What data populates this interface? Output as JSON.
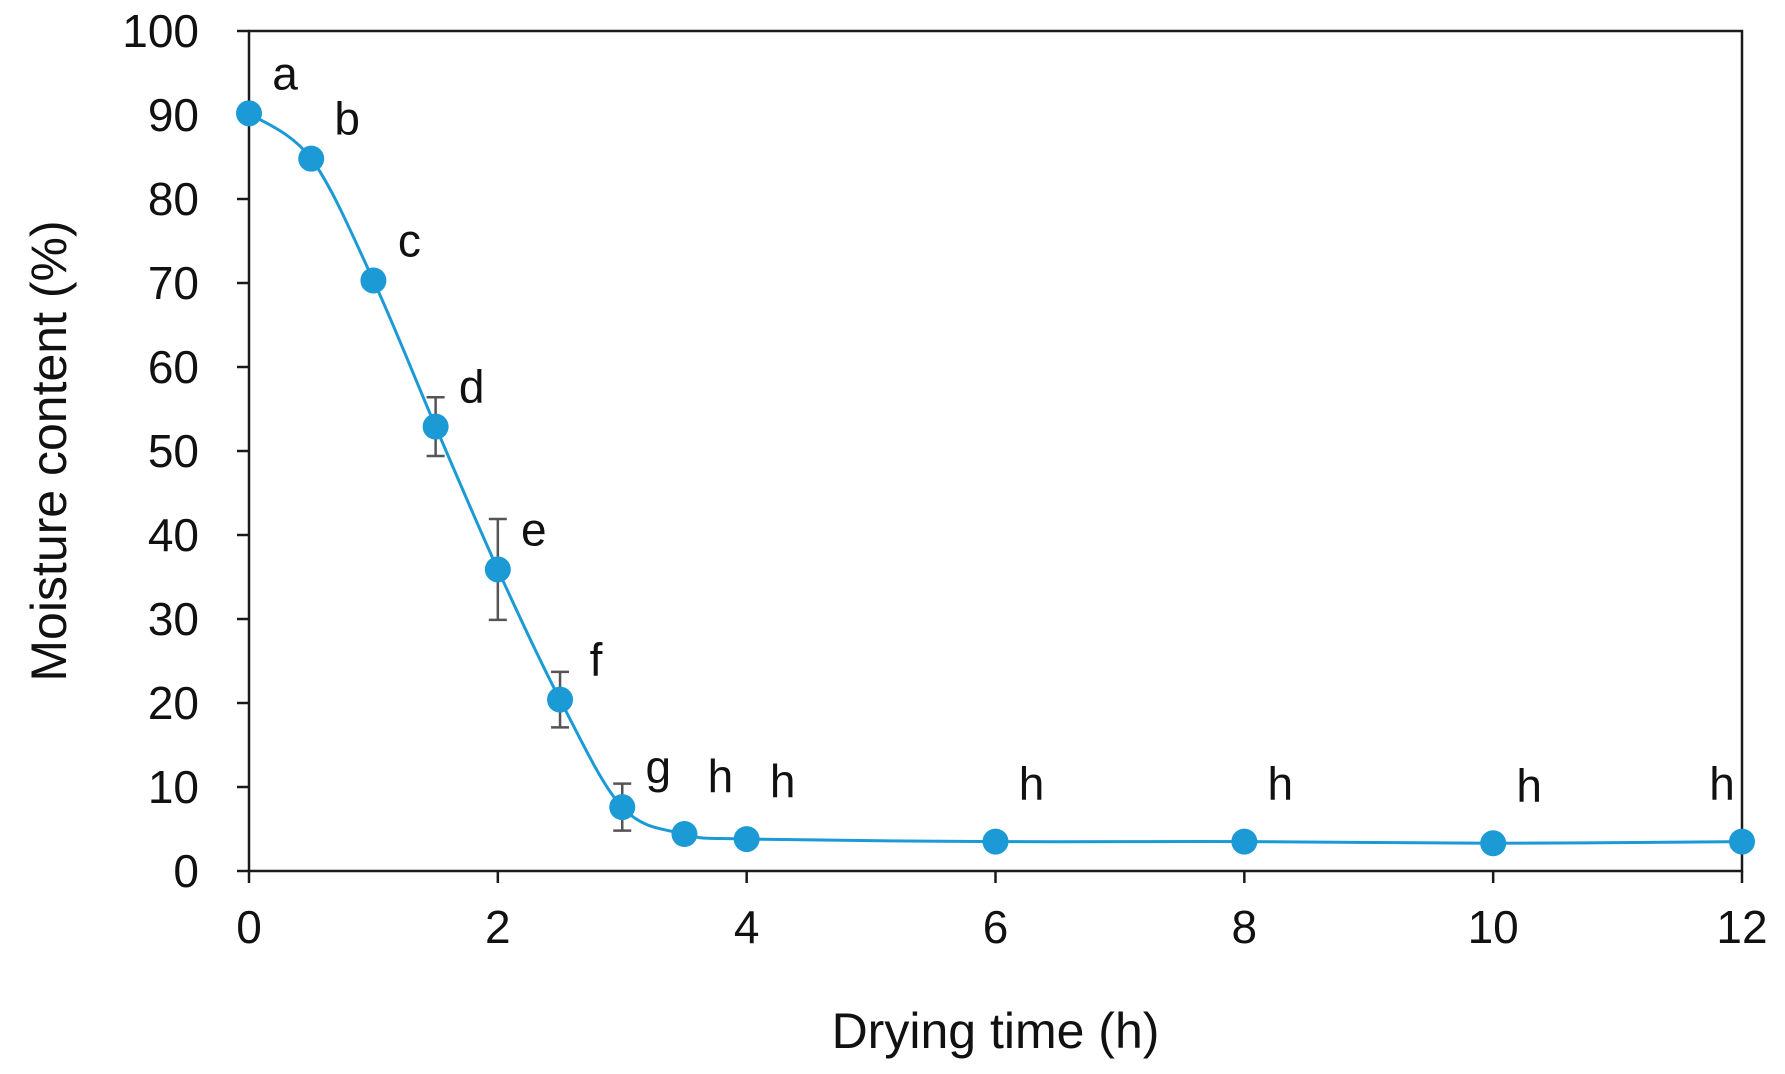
{
  "chart_data": {
    "type": "line",
    "title": "",
    "xlabel": "Drying time (h)",
    "ylabel": "Moisture content (%)",
    "xlim": [
      0,
      12
    ],
    "ylim": [
      0,
      100
    ],
    "xticks": [
      0,
      2,
      4,
      6,
      8,
      10,
      12
    ],
    "yticks": [
      0,
      10,
      20,
      30,
      40,
      50,
      60,
      70,
      80,
      90,
      100
    ],
    "grid": false,
    "legend": "none",
    "series": [
      {
        "color": "#1b9ad6",
        "points": [
          {
            "x": 0,
            "y": 90.2,
            "err": 0,
            "label": "a"
          },
          {
            "x": 0.5,
            "y": 84.8,
            "err": 0,
            "label": "b"
          },
          {
            "x": 1,
            "y": 70.3,
            "err": 0,
            "label": "c"
          },
          {
            "x": 1.5,
            "y": 52.9,
            "err": 3.5,
            "label": "d"
          },
          {
            "x": 2,
            "y": 35.9,
            "err": 6.0,
            "label": "e"
          },
          {
            "x": 2.5,
            "y": 20.4,
            "err": 3.3,
            "label": "f"
          },
          {
            "x": 3,
            "y": 7.6,
            "err": 2.8,
            "label": "g"
          },
          {
            "x": 3.5,
            "y": 4.4,
            "err": 0,
            "label": "h"
          },
          {
            "x": 4,
            "y": 3.8,
            "err": 0,
            "label": "h"
          },
          {
            "x": 6,
            "y": 3.5,
            "err": 0,
            "label": "h"
          },
          {
            "x": 8,
            "y": 3.5,
            "err": 0,
            "label": "h"
          },
          {
            "x": 10,
            "y": 3.3,
            "err": 0,
            "label": "h"
          },
          {
            "x": 12,
            "y": 3.5,
            "err": 0,
            "label": "h"
          }
        ]
      }
    ]
  }
}
